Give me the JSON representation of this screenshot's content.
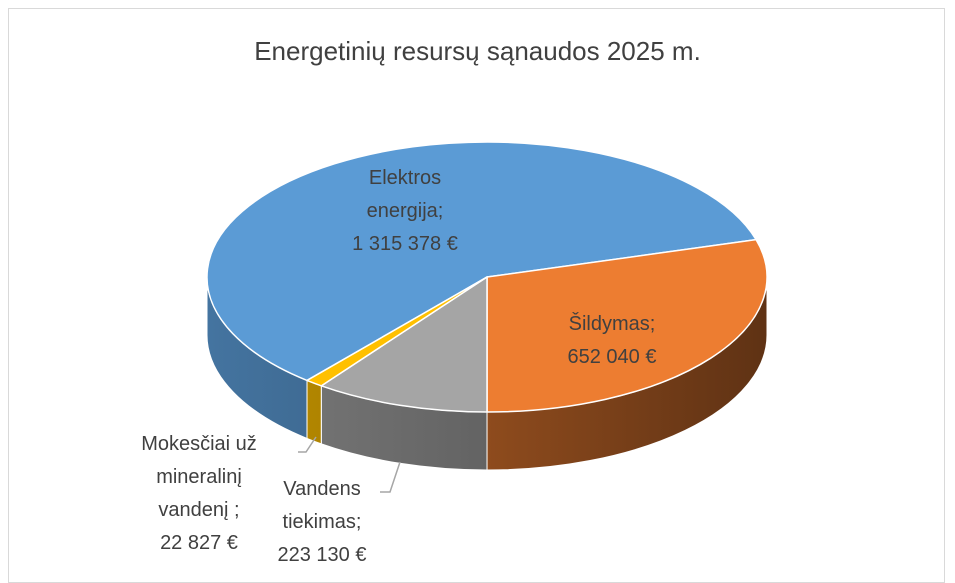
{
  "chart_data": {
    "type": "pie3d",
    "title": "Energetinių resursų sąnaudos 2025 m.",
    "categories": [
      "Elektros energija;",
      "Šildymas;",
      "Vandens tiekimas;",
      "Mokesčiai už mineralinį vandenį ;"
    ],
    "values": [
      1315378,
      652040,
      223130,
      22827
    ],
    "value_labels": [
      "1 315 378 €",
      "652 040 €",
      "223 130 €",
      "22 827 €"
    ],
    "colors": [
      "#5b9bd5",
      "#ed7d31",
      "#a5a5a5",
      "#ffc000"
    ]
  }
}
